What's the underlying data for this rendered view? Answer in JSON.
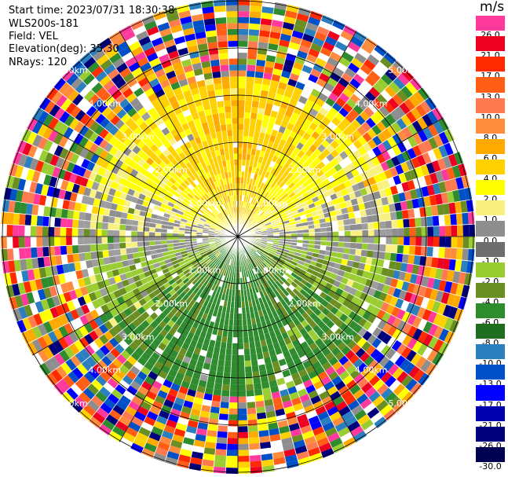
{
  "header": {
    "start_time": "Start time: 2023/07/31 18:30:38",
    "instrument": "WLS200s-181",
    "field": "Field: VEL",
    "elevation": "Elevation(deg): 35.30",
    "nrays": "NRays: 120"
  },
  "colorbar": {
    "unit": "m/s",
    "labels": [
      "26.0",
      "21.0",
      "17.0",
      "13.0",
      "10.0",
      "8.0",
      "6.0",
      "4.0",
      "2.0",
      "1.0",
      "0.0",
      "-1.0",
      "-2.0",
      "-4.0",
      "-6.0",
      "-8.0",
      "-10.0",
      "-13.0",
      "-17.0",
      "-21.0",
      "-26.0",
      "-30.0"
    ],
    "colors": [
      "#ff3a9c",
      "#ee0020",
      "#ff2a00",
      "#ff5e14",
      "#ff7a50",
      "#ff8c3c",
      "#ffaa00",
      "#ffd100",
      "#ffff00",
      "#f8f080",
      "#8e8e8e",
      "#6e6e6e",
      "#9acd32",
      "#6b8e23",
      "#2e8b2e",
      "#1f6e1f",
      "#2c7fbf",
      "#0050c8",
      "#0000ff",
      "#0000b0",
      "#00007c",
      "#000050"
    ]
  },
  "chart_data": {
    "type": "heatmap",
    "subtype": "PPI radial velocity scan",
    "nrays": 120,
    "range_rings_km": [
      1.0,
      2.0,
      3.0,
      4.0,
      5.0
    ],
    "ring_label_text": {
      "1": "1.00km",
      "2": "2.00km",
      "3": "3.00km",
      "4": "4.00km",
      "5": "5.00km"
    },
    "value_min": -30.0,
    "value_max": 26.0,
    "units": "m/s",
    "pattern": "positive velocities (yellow/orange) on the north side, negative velocities (green) on the south side, gray near zero along east-west; noisy random values beyond ~3.3 km"
  }
}
